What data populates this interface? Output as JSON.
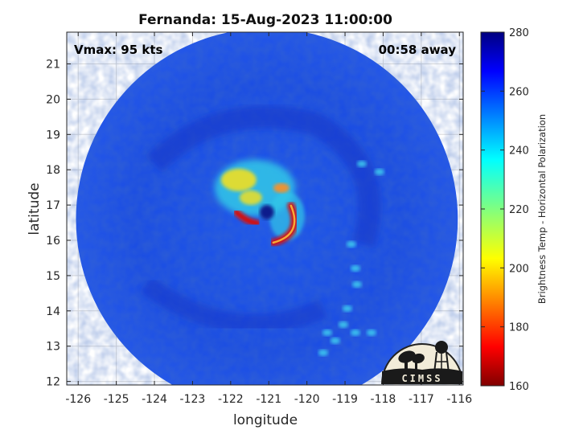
{
  "chart_data": {
    "type": "heatmap",
    "title": "Fernanda: 15-Aug-2023 11:00:00",
    "xlabel": "longitude",
    "ylabel": "latitude",
    "xlim": [
      -126.3,
      -115.9
    ],
    "ylim": [
      11.9,
      21.9
    ],
    "xticks": [
      -126,
      -125,
      -124,
      -123,
      -122,
      -121,
      -120,
      -119,
      -118,
      -117,
      -116
    ],
    "yticks": [
      12,
      13,
      14,
      15,
      16,
      17,
      18,
      19,
      20,
      21
    ],
    "grid": true,
    "storm_center": {
      "lon": -121.05,
      "lat": 16.8
    },
    "swath_radius_deg": 5.2,
    "colorbar": {
      "label": "Brightness Temp - Horizontal Polarization",
      "range": [
        160,
        280
      ],
      "ticks": [
        160,
        180,
        200,
        220,
        240,
        260,
        280
      ],
      "colormap": "jet"
    },
    "annotations": {
      "vmax": "Vmax: 95 kts",
      "time_offset": "00:58 away"
    }
  },
  "logo": {
    "text": "CIMSS"
  },
  "colors": {
    "background_field": "#1e50e6",
    "eyewall_red": "#d41010",
    "eyewall_yellow": "#f0e020",
    "rainband_cyan": "#30c8e8",
    "eye": "#0a1a8c"
  }
}
